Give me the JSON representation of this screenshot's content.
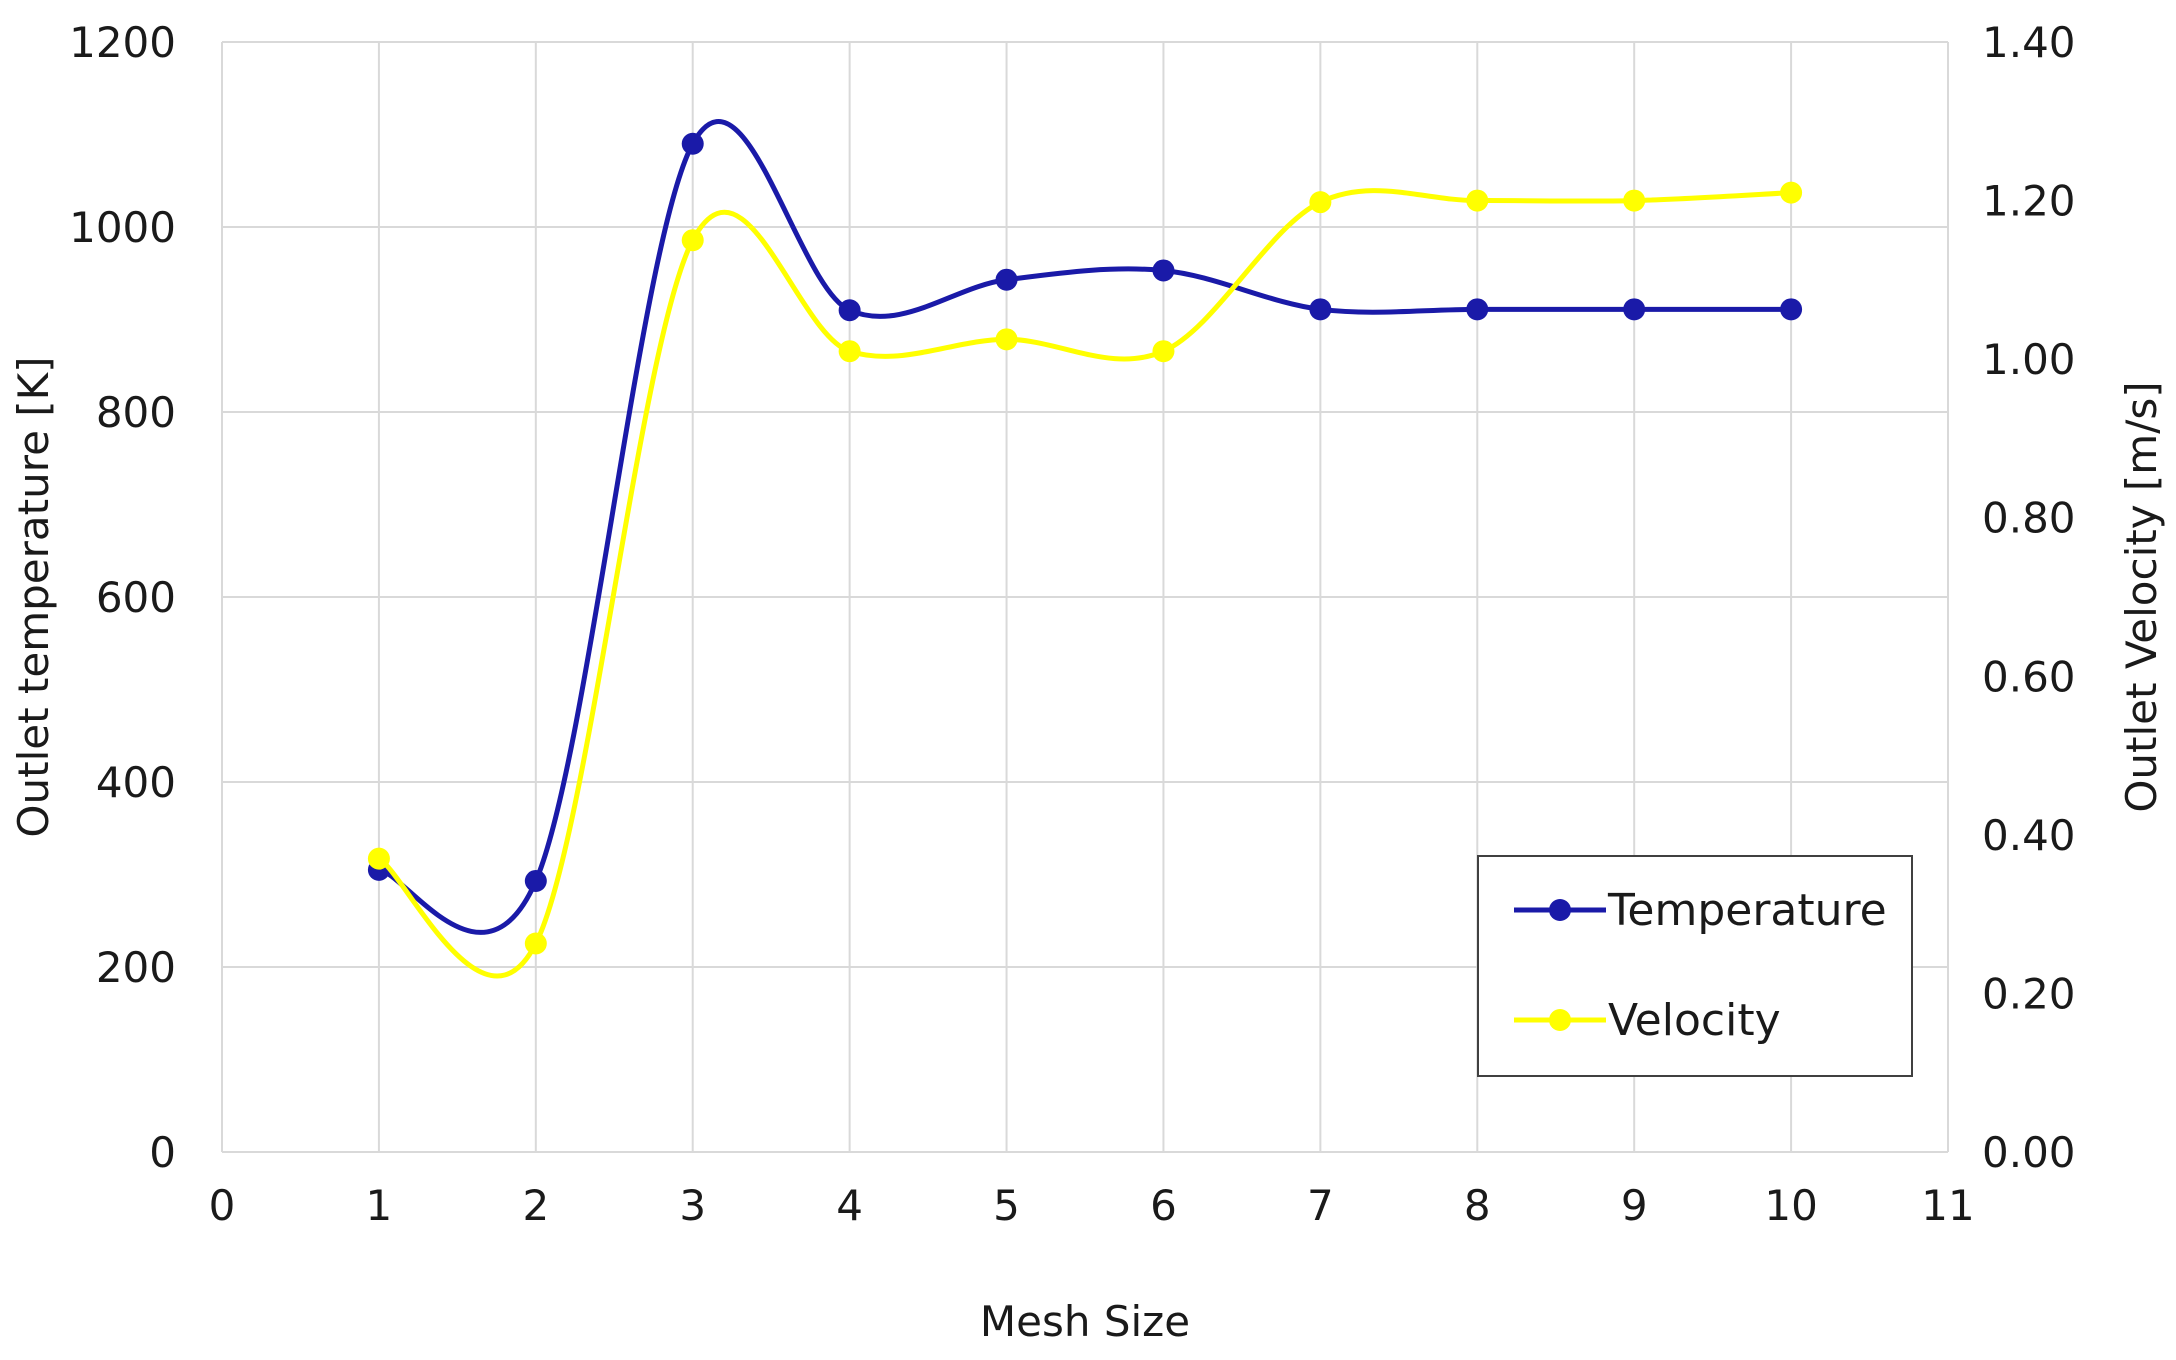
{
  "chart_data": {
    "type": "line",
    "title": "",
    "xlabel": "Mesh Size",
    "ylabel": "Outlet temperature [K]",
    "y2label": "Outlet Velocity [m/s]",
    "xlim": [
      0,
      11
    ],
    "ylim": [
      0,
      1200
    ],
    "y2lim": [
      0,
      1.4
    ],
    "x_ticks": [
      "0",
      "1",
      "2",
      "3",
      "4",
      "5",
      "6",
      "7",
      "8",
      "9",
      "10",
      "11"
    ],
    "y_ticks": [
      "0",
      "200",
      "400",
      "600",
      "800",
      "1000",
      "1200"
    ],
    "y2_ticks": [
      "0.00",
      "0.20",
      "0.40",
      "0.60",
      "0.80",
      "1.00",
      "1.20",
      "1.40"
    ],
    "grid": true,
    "legend_position": "bottom-right",
    "x": [
      1,
      2,
      3,
      4,
      5,
      6,
      7,
      8,
      9,
      10
    ],
    "series": [
      {
        "name": "Temperature",
        "axis": "left",
        "color": "#1a1aa8",
        "values": [
          305,
          293,
          1090,
          910,
          943,
          953,
          911,
          911,
          911,
          911
        ]
      },
      {
        "name": "Velocity",
        "axis": "right",
        "color": "#ffff00",
        "values": [
          0.37,
          0.263,
          1.15,
          1.01,
          1.025,
          1.01,
          1.198,
          1.2,
          1.2,
          1.21
        ]
      }
    ]
  }
}
